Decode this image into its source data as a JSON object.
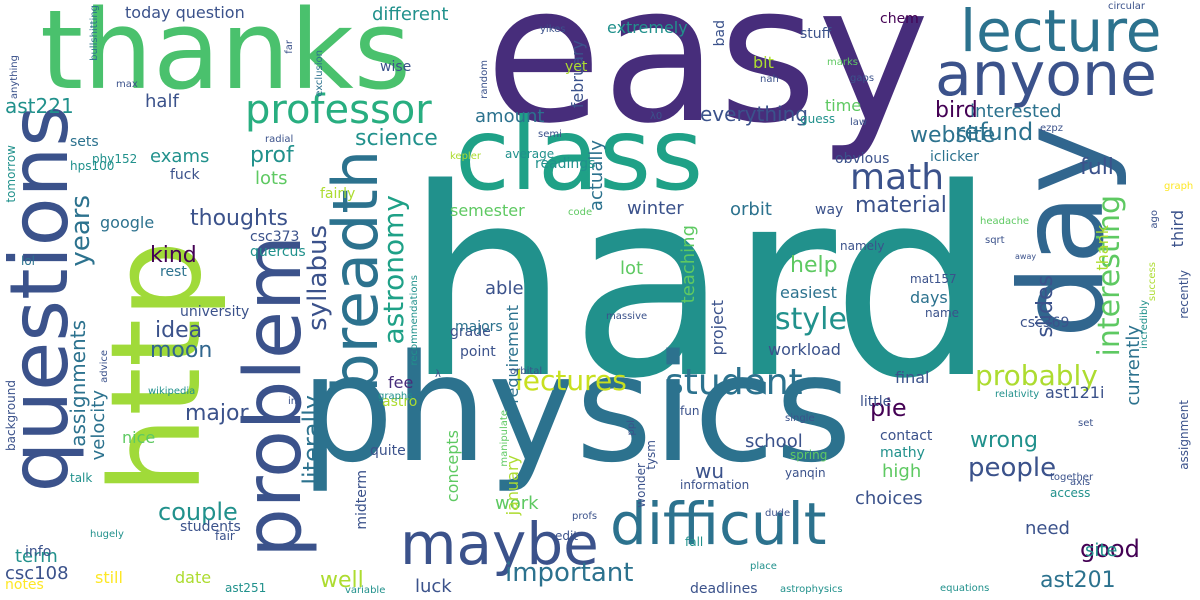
{
  "words": [
    {
      "text": "hard",
      "color": "#21918c",
      "rot": 0
    },
    {
      "text": "physics",
      "color": "#2c728e",
      "rot": 0
    },
    {
      "text": "easy",
      "color": "#472d7b",
      "rot": 0
    },
    {
      "text": "http",
      "color": "#a0da39",
      "rot": 90
    },
    {
      "text": "thanks",
      "color": "#4ac16d",
      "rot": 0
    },
    {
      "text": "class",
      "color": "#1fa187",
      "rot": 0
    },
    {
      "text": "day",
      "color": "#31668e",
      "rot": 90
    },
    {
      "text": "anyone",
      "color": "#3b528b",
      "rot": 0
    },
    {
      "text": "lecture",
      "color": "#2c728e",
      "rot": 0
    },
    {
      "text": "questions",
      "color": "#3b528b",
      "rot": 90
    },
    {
      "text": "problem",
      "color": "#3b528b",
      "rot": 90
    },
    {
      "text": "difficult",
      "color": "#2c728e",
      "rot": 0
    },
    {
      "text": "maybe",
      "color": "#3b528b",
      "rot": 0
    },
    {
      "text": "breadth",
      "color": "#2c728e",
      "rot": 90
    },
    {
      "text": "professor",
      "color": "#28ae80",
      "rot": 0
    },
    {
      "text": "student",
      "color": "#2c728e",
      "rot": 0
    },
    {
      "text": "math",
      "color": "#3b528b",
      "rot": 0
    },
    {
      "text": "refund",
      "color": "#2c728e",
      "rot": 0
    },
    {
      "text": "interesting",
      "color": "#5ec962",
      "rot": 90
    },
    {
      "text": "probably",
      "color": "#addc30",
      "rot": 0
    },
    {
      "text": "good",
      "color": "#440154",
      "rot": 0
    },
    {
      "text": "lectures",
      "color": "#c8e020",
      "rot": 0
    },
    {
      "text": "important",
      "color": "#2c728e",
      "rot": 0
    },
    {
      "text": "style",
      "color": "#21918c",
      "rot": 0
    },
    {
      "text": "people",
      "color": "#3b528b",
      "rot": 0
    },
    {
      "text": "astronomy",
      "color": "#1fa187",
      "rot": 90
    },
    {
      "text": "syllabus",
      "color": "#3b528b",
      "rot": 90
    },
    {
      "text": "science",
      "color": "#21918c",
      "rot": 0
    },
    {
      "text": "website",
      "color": "#2c728e",
      "rot": 0
    },
    {
      "text": "bird",
      "color": "#440154",
      "rot": 0
    },
    {
      "text": "years",
      "color": "#2c728e",
      "rot": 90
    },
    {
      "text": "couple",
      "color": "#21918c",
      "rot": 0
    },
    {
      "text": "major",
      "color": "#3b528b",
      "rot": 0
    },
    {
      "text": "full",
      "color": "#3b528b",
      "rot": 0
    },
    {
      "text": "ast201",
      "color": "#2c728e",
      "rot": 0
    },
    {
      "text": "thoughts",
      "color": "#3b528b",
      "rot": 0
    },
    {
      "text": "material",
      "color": "#3b528b",
      "rot": 0
    },
    {
      "text": "prof",
      "color": "#21918c",
      "rot": 0
    },
    {
      "text": "moon",
      "color": "#31668e",
      "rot": 0
    },
    {
      "text": "idea",
      "color": "#3b528b",
      "rot": 0
    },
    {
      "text": "kind",
      "color": "#440154",
      "rot": 0
    },
    {
      "text": "literally",
      "color": "#2c728e",
      "rot": 90
    },
    {
      "text": "well",
      "color": "#addc30",
      "rot": 0
    },
    {
      "text": "help",
      "color": "#5ec962",
      "rot": 0
    },
    {
      "text": "slides",
      "color": "#3b528b",
      "rot": 90
    },
    {
      "text": "wrong",
      "color": "#21918c",
      "rot": 0
    },
    {
      "text": "site",
      "color": "#21918c",
      "rot": 0
    },
    {
      "text": "pie",
      "color": "#440154",
      "rot": 0
    },
    {
      "text": "assignments",
      "color": "#2c728e",
      "rot": 90
    },
    {
      "text": "ast221",
      "color": "#21918c",
      "rot": 0
    },
    {
      "text": "different",
      "color": "#21918c",
      "rot": 0
    },
    {
      "text": "today question",
      "color": "#3b528b",
      "rot": 0
    },
    {
      "text": "everything",
      "color": "#3b528b",
      "rot": 0
    },
    {
      "text": "interested",
      "color": "#2c728e",
      "rot": 0
    },
    {
      "text": "half",
      "color": "#3b528b",
      "rot": 0
    },
    {
      "text": "amount",
      "color": "#2c728e",
      "rot": 0
    },
    {
      "text": "actually",
      "color": "#2c728e",
      "rot": 90
    },
    {
      "text": "exams",
      "color": "#21918c",
      "rot": 0
    },
    {
      "text": "lots",
      "color": "#5ec962",
      "rot": 0
    },
    {
      "text": "google",
      "color": "#2c728e",
      "rot": 0
    },
    {
      "text": "semester",
      "color": "#5ec962",
      "rot": 0
    },
    {
      "text": "winter",
      "color": "#3b528b",
      "rot": 0
    },
    {
      "text": "orbit",
      "color": "#2c728e",
      "rot": 0
    },
    {
      "text": "teaching",
      "color": "#5ec962",
      "rot": 90
    },
    {
      "text": "able",
      "color": "#3b528b",
      "rot": 0
    },
    {
      "text": "lot",
      "color": "#5ec962",
      "rot": 0
    },
    {
      "text": "easiest",
      "color": "#2c728e",
      "rot": 0
    },
    {
      "text": "days",
      "color": "#2c728e",
      "rot": 0
    },
    {
      "text": "workload",
      "color": "#3b528b",
      "rot": 0
    },
    {
      "text": "final",
      "color": "#3b528b",
      "rot": 0
    },
    {
      "text": "school",
      "color": "#3b528b",
      "rot": 0
    },
    {
      "text": "velocity",
      "color": "#2c728e",
      "rot": 90
    },
    {
      "text": "nice",
      "color": "#5ec962",
      "rot": 0
    },
    {
      "text": "term",
      "color": "#21918c",
      "rot": 0
    },
    {
      "text": "still",
      "color": "#fde725",
      "rot": 0
    },
    {
      "text": "csc108",
      "color": "#3b528b",
      "rot": 0
    },
    {
      "text": "notes",
      "color": "#fde725",
      "rot": 0
    },
    {
      "text": "info",
      "color": "#3b528b",
      "rot": 0
    },
    {
      "text": "luck",
      "color": "#3b528b",
      "rot": 0
    },
    {
      "text": "date",
      "color": "#addc30",
      "rot": 0
    },
    {
      "text": "work",
      "color": "#5ec962",
      "rot": 0
    },
    {
      "text": "concepts",
      "color": "#5ec962",
      "rot": 90
    },
    {
      "text": "january",
      "color": "#addc30",
      "rot": 90
    },
    {
      "text": "wu",
      "color": "#3b528b",
      "rot": 0
    },
    {
      "text": "high",
      "color": "#5ec962",
      "rot": 0
    },
    {
      "text": "choices",
      "color": "#3b528b",
      "rot": 0
    },
    {
      "text": "need",
      "color": "#3b528b",
      "rot": 0
    },
    {
      "text": "currently",
      "color": "#2c728e",
      "rot": 90
    },
    {
      "text": "thank",
      "color": "#addc30",
      "rot": 90
    },
    {
      "text": "third",
      "color": "#3b528b",
      "rot": 90
    },
    {
      "text": "ast121i",
      "color": "#3b528b",
      "rot": 0
    },
    {
      "text": "fee",
      "color": "#472d7b",
      "rot": 0
    },
    {
      "text": "astro",
      "color": "#addc30",
      "rot": 0
    },
    {
      "text": "midterm",
      "color": "#3b528b",
      "rot": 90
    },
    {
      "text": "requirement",
      "color": "#2c728e",
      "rot": 90
    },
    {
      "text": "project",
      "color": "#3b528b",
      "rot": 90
    },
    {
      "text": "time",
      "color": "#5ec962",
      "rot": 0
    },
    {
      "text": "bit",
      "color": "#addc30",
      "rot": 0
    },
    {
      "text": "bad",
      "color": "#3b528b",
      "rot": 90
    },
    {
      "text": "february",
      "color": "#3b528b",
      "rot": 90
    },
    {
      "text": "extremely",
      "color": "#21918c",
      "rot": 0
    },
    {
      "text": "stuff",
      "color": "#3b528b",
      "rot": 0
    },
    {
      "text": "chem",
      "color": "#440154",
      "rot": 0
    },
    {
      "text": "wise",
      "color": "#3b528b",
      "rot": 0
    },
    {
      "text": "yet",
      "color": "#addc30",
      "rot": 0
    },
    {
      "text": "guess",
      "color": "#21918c",
      "rot": 0
    },
    {
      "text": "obvious",
      "color": "#3b528b",
      "rot": 0
    },
    {
      "text": "iclicker",
      "color": "#2c728e",
      "rot": 0
    },
    {
      "text": "namely",
      "color": "#3b528b",
      "rot": 0
    },
    {
      "text": "way",
      "color": "#3b528b",
      "rot": 0
    },
    {
      "text": "readings",
      "color": "#21918c",
      "rot": 0
    },
    {
      "text": "average",
      "color": "#21918c",
      "rot": 0
    },
    {
      "text": "fairly",
      "color": "#addc30",
      "rot": 0
    },
    {
      "text": "quercus",
      "color": "#21918c",
      "rot": 0
    },
    {
      "text": "csc373",
      "color": "#3b528b",
      "rot": 0
    },
    {
      "text": "rest",
      "color": "#2c728e",
      "rot": 0
    },
    {
      "text": "university",
      "color": "#3b528b",
      "rot": 0
    },
    {
      "text": "grade",
      "color": "#3b528b",
      "rot": 0
    },
    {
      "text": "majors",
      "color": "#2c728e",
      "rot": 0
    },
    {
      "text": "point",
      "color": "#3b528b",
      "rot": 0
    },
    {
      "text": "csc369",
      "color": "#3b528b",
      "rot": 0
    },
    {
      "text": "name",
      "color": "#3b528b",
      "rot": 0
    },
    {
      "text": "mat157",
      "color": "#3b528b",
      "rot": 0
    },
    {
      "text": "hps100",
      "color": "#21918c",
      "rot": 0
    },
    {
      "text": "fuck",
      "color": "#3b528b",
      "rot": 0
    },
    {
      "text": "phy152",
      "color": "#21918c",
      "rot": 0
    },
    {
      "text": "sets",
      "color": "#2c728e",
      "rot": 0
    },
    {
      "text": "tomorrow",
      "color": "#21918c",
      "rot": 90
    },
    {
      "text": "lol",
      "color": "#2c728e",
      "rot": 0
    },
    {
      "text": "students",
      "color": "#3b528b",
      "rot": 0
    },
    {
      "text": "quite",
      "color": "#3b528b",
      "rot": 0
    },
    {
      "text": "fun",
      "color": "#3b528b",
      "rot": 0
    },
    {
      "text": "little",
      "color": "#3b528b",
      "rot": 0
    },
    {
      "text": "contact",
      "color": "#3b528b",
      "rot": 0
    },
    {
      "text": "mathy",
      "color": "#21918c",
      "rot": 0
    },
    {
      "text": "spring",
      "color": "#5ec962",
      "rot": 0
    },
    {
      "text": "yanqin",
      "color": "#3b528b",
      "rot": 0
    },
    {
      "text": "information",
      "color": "#3b528b",
      "rot": 0
    },
    {
      "text": "tysm",
      "color": "#3b528b",
      "rot": 90
    },
    {
      "text": "wonder",
      "color": "#3b528b",
      "rot": 90
    },
    {
      "text": "edit",
      "color": "#3b528b",
      "rot": 0
    },
    {
      "text": "fall",
      "color": "#21918c",
      "rot": 0
    },
    {
      "text": "deadlines",
      "color": "#3b528b",
      "rot": 0
    },
    {
      "text": "access",
      "color": "#21918c",
      "rot": 0
    },
    {
      "text": "single",
      "color": "#3b528b",
      "rot": 0
    },
    {
      "text": "relativity",
      "color": "#21918c",
      "rot": 0
    },
    {
      "text": "assignment",
      "color": "#3b528b",
      "rot": 90
    },
    {
      "text": "recently",
      "color": "#3b528b",
      "rot": 90
    },
    {
      "text": "incredibly",
      "color": "#21918c",
      "rot": 90
    },
    {
      "text": "background",
      "color": "#3b528b",
      "rot": 90
    },
    {
      "text": "advice",
      "color": "#3b528b",
      "rot": 90
    },
    {
      "text": "wikipedia",
      "color": "#21918c",
      "rot": 0
    },
    {
      "text": "talk",
      "color": "#21918c",
      "rot": 0
    },
    {
      "text": "fair",
      "color": "#3b528b",
      "rot": 0
    },
    {
      "text": "hugely",
      "color": "#21918c",
      "rot": 0
    },
    {
      "text": "ast251",
      "color": "#21918c",
      "rot": 0
    },
    {
      "text": "variable",
      "color": "#21918c",
      "rot": 0
    },
    {
      "text": "astrophysics",
      "color": "#21918c",
      "rot": 0
    },
    {
      "text": "equations",
      "color": "#21918c",
      "rot": 0
    },
    {
      "text": "circular",
      "color": "#3b528b",
      "rot": 0
    },
    {
      "text": "gaps",
      "color": "#3b528b",
      "rot": 0
    },
    {
      "text": "marks",
      "color": "#5ec962",
      "rot": 0
    },
    {
      "text": "law",
      "color": "#3b528b",
      "rot": 0
    },
    {
      "text": "ezpz",
      "color": "#3b528b",
      "rot": 0
    },
    {
      "text": "graph",
      "color": "#fde725",
      "rot": 0
    },
    {
      "text": "sqrt",
      "color": "#3b528b",
      "rot": 0
    },
    {
      "text": "headache",
      "color": "#5ec962",
      "rot": 0
    },
    {
      "text": "away",
      "color": "#3b528b",
      "rot": 0
    },
    {
      "text": "ago",
      "color": "#3b528b",
      "rot": 90
    },
    {
      "text": "success",
      "color": "#addc30",
      "rot": 90
    },
    {
      "text": "manipulate",
      "color": "#5ec962",
      "rot": 90
    },
    {
      "text": "profs",
      "color": "#3b528b",
      "rot": 0
    },
    {
      "text": "dude",
      "color": "#3b528b",
      "rot": 0
    },
    {
      "text": "place",
      "color": "#21918c",
      "rot": 0
    },
    {
      "text": "together",
      "color": "#3b528b",
      "rot": 0
    },
    {
      "text": "axis",
      "color": "#3b528b",
      "rot": 0
    },
    {
      "text": "set",
      "color": "#3b528b",
      "rot": 0
    },
    {
      "text": "im",
      "color": "#3b528b",
      "rot": 0
    },
    {
      "text": "graphs",
      "color": "#21918c",
      "rot": 0
    },
    {
      "text": "orbital",
      "color": "#3b528b",
      "rot": 0
    },
    {
      "text": "massive",
      "color": "#3b528b",
      "rot": 0
    },
    {
      "text": "recommendations",
      "color": "#21918c",
      "rot": 90
    },
    {
      "text": "ppl",
      "color": "#3b528b",
      "rot": 90
    },
    {
      "text": "code",
      "color": "#5ec962",
      "rot": 0
    },
    {
      "text": "semi",
      "color": "#3b528b",
      "rot": 0
    },
    {
      "text": "kepler",
      "color": "#addc30",
      "rot": 0
    },
    {
      "text": "radial",
      "color": "#3b528b",
      "rot": 0
    },
    {
      "text": "max",
      "color": "#3b528b",
      "rot": 0
    },
    {
      "text": "far",
      "color": "#3b528b",
      "rot": 90
    },
    {
      "text": "exclusion",
      "color": "#2c728e",
      "rot": 90
    },
    {
      "text": "bullshitting",
      "color": "#2c728e",
      "rot": 90
    },
    {
      "text": "anything",
      "color": "#3b528b",
      "rot": 90
    },
    {
      "text": "random",
      "color": "#3b528b",
      "rot": 90
    },
    {
      "text": "yikes",
      "color": "#3b528b",
      "rot": 0
    },
    {
      "text": "nah",
      "color": "#3b528b",
      "rot": 0
    },
    {
      "text": "λ0",
      "color": "#3b528b",
      "rot": 0
    },
    {
      "text": "λ",
      "color": "#3b528b",
      "rot": 0
    }
  ]
}
